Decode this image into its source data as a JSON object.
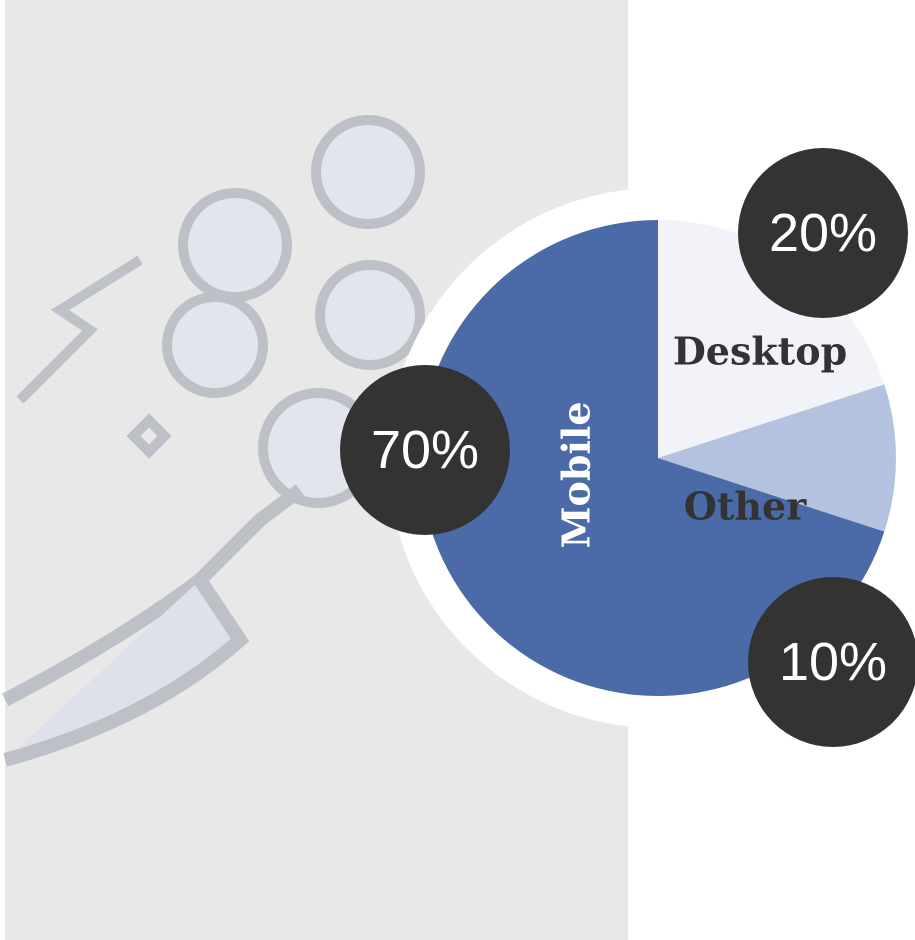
{
  "chart_data": {
    "type": "pie",
    "categories": [
      "Mobile",
      "Desktop",
      "Other"
    ],
    "values": [
      70,
      20,
      10
    ],
    "value_labels": [
      "70%",
      "20%",
      "10%"
    ],
    "colors": [
      "#4a6aa8",
      "#f1f3f8",
      "#b3c3df"
    ]
  }
}
